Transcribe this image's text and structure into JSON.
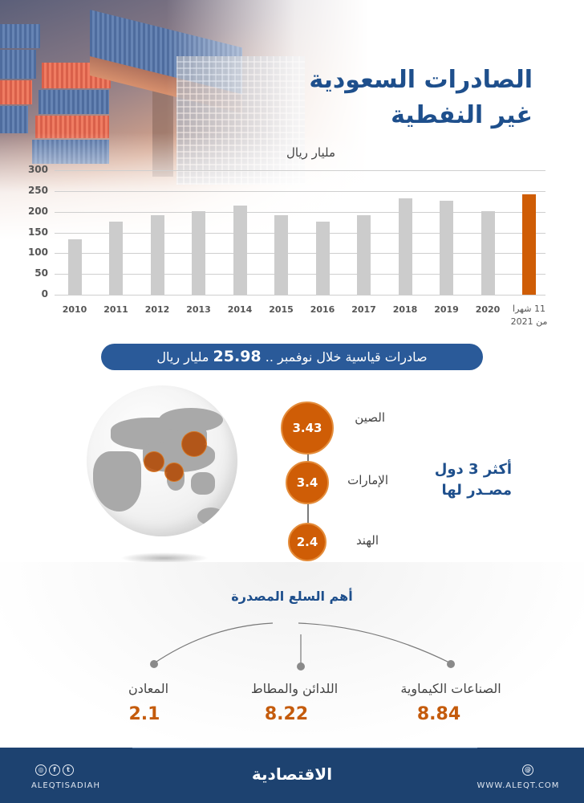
{
  "header": {
    "title_line1": "الصادرات السعودية",
    "title_line2": "غير النفطية"
  },
  "chart_data": {
    "type": "bar",
    "title": "الصادرات السعودية غير النفطية",
    "ylabel": "مليار ريال",
    "xlabel": "",
    "ylim": [
      0,
      300
    ],
    "yticks": [
      0,
      50,
      100,
      150,
      200,
      250,
      300
    ],
    "grid": true,
    "categories": [
      "2010",
      "2011",
      "2012",
      "2013",
      "2014",
      "2015",
      "2016",
      "2017",
      "2018",
      "2019",
      "2020",
      "11 شهرا من 2021"
    ],
    "values": [
      134,
      176,
      191,
      202,
      214,
      191,
      176,
      191,
      233,
      226,
      202,
      241
    ],
    "highlight_index": 11,
    "colors": {
      "bar": "#cccccc",
      "highlight": "#cf5d06"
    }
  },
  "chart": {
    "unit_label": "مليار ريال",
    "y_ticks": [
      "300",
      "250",
      "200",
      "150",
      "100",
      "50",
      "0"
    ],
    "x_labels": [
      "2010",
      "2011",
      "2012",
      "2013",
      "2014",
      "2015",
      "2016",
      "2017",
      "2018",
      "2019",
      "2020"
    ],
    "last_label_line1": "11 شهرا",
    "last_label_line2": "من 2021"
  },
  "banner": {
    "text_before": "صادرات قياسية خلال نوفمبر ..",
    "value": "25.98",
    "text_after": "مليار ريال"
  },
  "top_countries": {
    "title_line1": "أكثر 3 دول",
    "title_line2": "مصـدر لها",
    "items": [
      {
        "name": "الصين",
        "value": "3.43"
      },
      {
        "name": "الإمارات",
        "value": "3.4"
      },
      {
        "name": "الهند",
        "value": "2.4"
      }
    ]
  },
  "commodities": {
    "title": "أهم السلع المصدرة",
    "items": [
      {
        "name": "الصناعات الكيماوية",
        "value": "8.84"
      },
      {
        "name": "اللدائن والمطاط",
        "value": "8.22"
      },
      {
        "name": "المعادن",
        "value": "2.1"
      }
    ]
  },
  "footer": {
    "logo": "الاقتصادية",
    "social_handle": "ALEQTISADIAH",
    "website": "WWW.ALEQT.COM",
    "social_icons": [
      "instagram-icon",
      "facebook-icon",
      "twitter-icon"
    ],
    "social_glyphs": [
      "◎",
      "f",
      "t"
    ],
    "web_glyph": "@"
  },
  "colors": {
    "title_blue": "#1e4f8c",
    "banner_blue": "#2a5a99",
    "footer_blue": "#1d4270",
    "accent_orange": "#cf5d06",
    "bar_gray": "#cccccc"
  }
}
